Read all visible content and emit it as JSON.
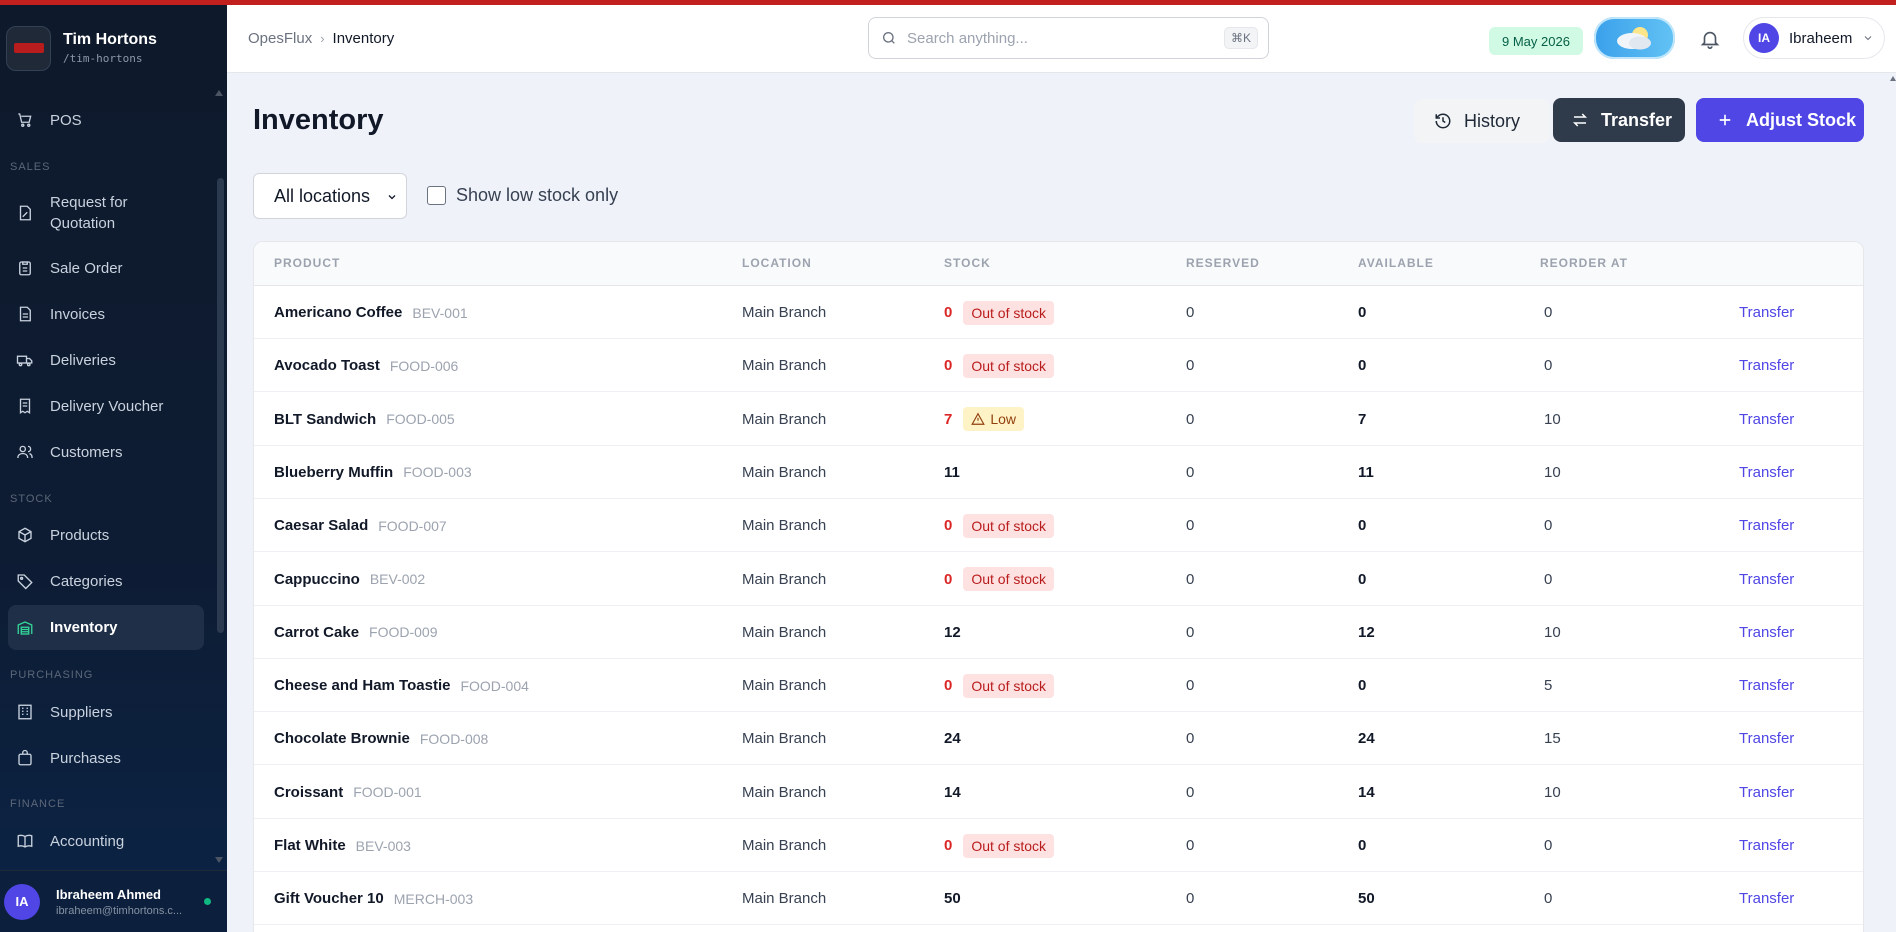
{
  "brand": {
    "name": "Tim Hortons",
    "slug": "/tim-hortons"
  },
  "sidebar": {
    "items": [
      {
        "label": "POS",
        "icon": "cart-icon"
      },
      {
        "section": "SALES"
      },
      {
        "label": "Request for Quotation",
        "icon": "quotation-icon"
      },
      {
        "label": "Sale Order",
        "icon": "clipboard-icon"
      },
      {
        "label": "Invoices",
        "icon": "document-icon"
      },
      {
        "label": "Deliveries",
        "icon": "truck-icon"
      },
      {
        "label": "Delivery Voucher",
        "icon": "receipt-icon"
      },
      {
        "label": "Customers",
        "icon": "users-icon"
      },
      {
        "section": "STOCK"
      },
      {
        "label": "Products",
        "icon": "box-icon"
      },
      {
        "label": "Categories",
        "icon": "tag-icon"
      },
      {
        "label": "Inventory",
        "icon": "warehouse-icon",
        "active": true
      },
      {
        "section": "PURCHASING"
      },
      {
        "label": "Suppliers",
        "icon": "building-icon"
      },
      {
        "label": "Purchases",
        "icon": "bag-icon"
      },
      {
        "section": "FINANCE"
      },
      {
        "label": "Accounting",
        "icon": "book-icon"
      }
    ],
    "user": {
      "initials": "IA",
      "name": "Ibraheem Ahmed",
      "email": "ibraheem@timhortons.c..."
    }
  },
  "header": {
    "breadcrumb": [
      "OpesFlux",
      "Inventory"
    ],
    "search_placeholder": "Search anything...",
    "search_shortcut": "⌘K",
    "date": "9 May 2026",
    "user": {
      "initials": "IA",
      "name": "Ibraheem"
    }
  },
  "page": {
    "title": "Inventory",
    "buttons": {
      "history": "History",
      "transfer": "Transfer",
      "adjust": "Adjust Stock"
    },
    "location_filter": "All locations",
    "low_stock_label": "Show low stock only"
  },
  "table": {
    "columns": [
      "PRODUCT",
      "LOCATION",
      "STOCK",
      "RESERVED",
      "AVAILABLE",
      "REORDER AT"
    ],
    "action_label": "Transfer",
    "rows": [
      {
        "name": "Americano Coffee",
        "sku": "BEV-001",
        "location": "Main Branch",
        "stock": "0",
        "status": "Out of stock",
        "reserved": "0",
        "available": "0",
        "reorder": "0"
      },
      {
        "name": "Avocado Toast",
        "sku": "FOOD-006",
        "location": "Main Branch",
        "stock": "0",
        "status": "Out of stock",
        "reserved": "0",
        "available": "0",
        "reorder": "0"
      },
      {
        "name": "BLT Sandwich",
        "sku": "FOOD-005",
        "location": "Main Branch",
        "stock": "7",
        "status": "Low",
        "reserved": "0",
        "available": "7",
        "reorder": "10"
      },
      {
        "name": "Blueberry Muffin",
        "sku": "FOOD-003",
        "location": "Main Branch",
        "stock": "11",
        "status": "",
        "reserved": "0",
        "available": "11",
        "reorder": "10"
      },
      {
        "name": "Caesar Salad",
        "sku": "FOOD-007",
        "location": "Main Branch",
        "stock": "0",
        "status": "Out of stock",
        "reserved": "0",
        "available": "0",
        "reorder": "0"
      },
      {
        "name": "Cappuccino",
        "sku": "BEV-002",
        "location": "Main Branch",
        "stock": "0",
        "status": "Out of stock",
        "reserved": "0",
        "available": "0",
        "reorder": "0"
      },
      {
        "name": "Carrot Cake",
        "sku": "FOOD-009",
        "location": "Main Branch",
        "stock": "12",
        "status": "",
        "reserved": "0",
        "available": "12",
        "reorder": "10"
      },
      {
        "name": "Cheese and Ham Toastie",
        "sku": "FOOD-004",
        "location": "Main Branch",
        "stock": "0",
        "status": "Out of stock",
        "reserved": "0",
        "available": "0",
        "reorder": "5"
      },
      {
        "name": "Chocolate Brownie",
        "sku": "FOOD-008",
        "location": "Main Branch",
        "stock": "24",
        "status": "",
        "reserved": "0",
        "available": "24",
        "reorder": "15"
      },
      {
        "name": "Croissant",
        "sku": "FOOD-001",
        "location": "Main Branch",
        "stock": "14",
        "status": "",
        "reserved": "0",
        "available": "14",
        "reorder": "10"
      },
      {
        "name": "Flat White",
        "sku": "BEV-003",
        "location": "Main Branch",
        "stock": "0",
        "status": "Out of stock",
        "reserved": "0",
        "available": "0",
        "reorder": "0"
      },
      {
        "name": "Gift Voucher 10",
        "sku": "MERCH-003",
        "location": "Main Branch",
        "stock": "50",
        "status": "",
        "reserved": "0",
        "available": "50",
        "reorder": "0"
      }
    ]
  },
  "colors": {
    "accent": "#4f46e5",
    "sidebar_bg": "#0e1a2b",
    "danger": "#dc2626",
    "warning_bg": "#fef3c7",
    "success_bg": "#d1fae5"
  }
}
